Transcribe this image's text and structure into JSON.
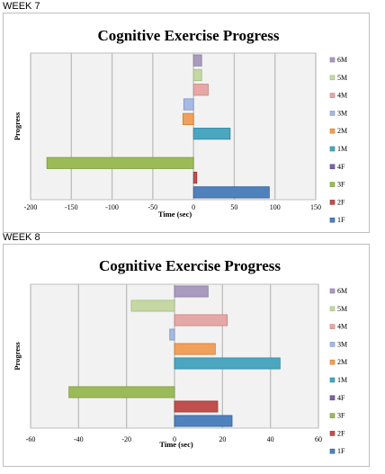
{
  "charts": [
    {
      "label": "WEEK 7"
    },
    {
      "label": "WEEK 8"
    }
  ],
  "chart_data": [
    {
      "type": "bar",
      "orientation": "horizontal",
      "title": "Cognitive Exercise Progress",
      "xlabel": "Time (sec)",
      "ylabel": "Progress",
      "xlim": [
        -200,
        150
      ],
      "xticks": [
        "-200",
        "-150",
        "-100",
        "-50",
        "0",
        "50",
        "100",
        "150"
      ],
      "grid": true,
      "legend_position": "right",
      "series": [
        {
          "name": "6M",
          "value": 10,
          "color": "#a99bbd",
          "border": "#8a7ba4"
        },
        {
          "name": "5M",
          "value": 10,
          "color": "#c5d8a3",
          "border": "#a3bb7c"
        },
        {
          "name": "4M",
          "value": 18,
          "color": "#e5a8a6",
          "border": "#c9807e"
        },
        {
          "name": "3M",
          "value": -12,
          "color": "#a6b9e0",
          "border": "#7f97c9"
        },
        {
          "name": "2M",
          "value": -13,
          "color": "#f1a05b",
          "border": "#d07a30"
        },
        {
          "name": "1M",
          "value": 45,
          "color": "#4ba6c0",
          "border": "#2f879f"
        },
        {
          "name": "4F",
          "value": 0,
          "color": "#7e64a6",
          "border": "#5f4787"
        },
        {
          "name": "3F",
          "value": -180,
          "color": "#9bbb59",
          "border": "#7a9a3a"
        },
        {
          "name": "2F",
          "value": 4,
          "color": "#c0504d",
          "border": "#9e3532"
        },
        {
          "name": "1F",
          "value": 93,
          "color": "#4f81bd",
          "border": "#355f94"
        }
      ]
    },
    {
      "type": "bar",
      "orientation": "horizontal",
      "title": "Cognitive Exercise Progress",
      "xlabel": "Time (sec)",
      "ylabel": "Progress",
      "xlim": [
        -60,
        60
      ],
      "xticks": [
        "-60",
        "-40",
        "-20",
        "0",
        "20",
        "40",
        "60"
      ],
      "grid": true,
      "legend_position": "right",
      "series": [
        {
          "name": "6M",
          "value": 14,
          "color": "#a99bbd",
          "border": "#8a7ba4"
        },
        {
          "name": "5M",
          "value": -18,
          "color": "#c5d8a3",
          "border": "#a3bb7c"
        },
        {
          "name": "4M",
          "value": 22,
          "color": "#e5a8a6",
          "border": "#c9807e"
        },
        {
          "name": "3M",
          "value": -2,
          "color": "#a6b9e0",
          "border": "#7f97c9"
        },
        {
          "name": "2M",
          "value": 17,
          "color": "#f1a05b",
          "border": "#d07a30"
        },
        {
          "name": "1M",
          "value": 44,
          "color": "#4ba6c0",
          "border": "#2f879f"
        },
        {
          "name": "4F",
          "value": 0,
          "color": "#7e64a6",
          "border": "#5f4787"
        },
        {
          "name": "3F",
          "value": -44,
          "color": "#9bbb59",
          "border": "#7a9a3a"
        },
        {
          "name": "2F",
          "value": 18,
          "color": "#c0504d",
          "border": "#9e3532"
        },
        {
          "name": "1F",
          "value": 24,
          "color": "#4f81bd",
          "border": "#355f94"
        }
      ]
    }
  ]
}
